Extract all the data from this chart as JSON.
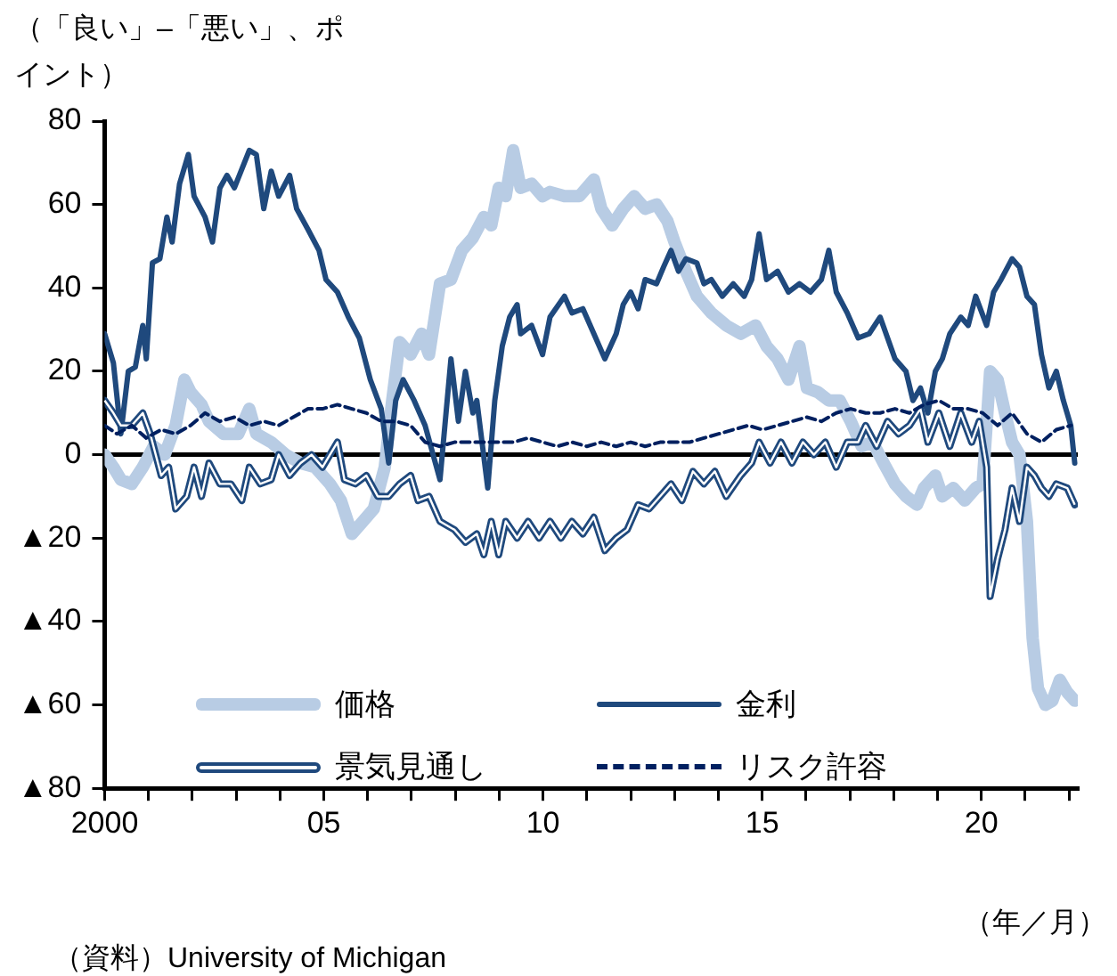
{
  "chart_data": {
    "type": "line",
    "ylabel": "（「良い」–「悪い」、ポイント）",
    "xlabel": "（年／月）",
    "annotations": [
      "（資料）University of Michigan"
    ],
    "xlim": [
      2000,
      2022.2
    ],
    "xticks": [
      {
        "value": 2000,
        "label": "2000"
      },
      {
        "value": 2001,
        "label": null
      },
      {
        "value": 2002,
        "label": null
      },
      {
        "value": 2003,
        "label": null
      },
      {
        "value": 2004,
        "label": null
      },
      {
        "value": 2005,
        "label": "05"
      },
      {
        "value": 2006,
        "label": null
      },
      {
        "value": 2007,
        "label": null
      },
      {
        "value": 2008,
        "label": null
      },
      {
        "value": 2009,
        "label": null
      },
      {
        "value": 2010,
        "label": "10"
      },
      {
        "value": 2011,
        "label": null
      },
      {
        "value": 2012,
        "label": null
      },
      {
        "value": 2013,
        "label": null
      },
      {
        "value": 2014,
        "label": null
      },
      {
        "value": 2015,
        "label": "15"
      },
      {
        "value": 2016,
        "label": null
      },
      {
        "value": 2017,
        "label": null
      },
      {
        "value": 2018,
        "label": null
      },
      {
        "value": 2019,
        "label": null
      },
      {
        "value": 2020,
        "label": "20"
      },
      {
        "value": 2021,
        "label": null
      },
      {
        "value": 2022,
        "label": null
      }
    ],
    "ylim": [
      -80,
      80
    ],
    "yticks": [
      {
        "value": -80,
        "label": "▲80"
      },
      {
        "value": -60,
        "label": "▲60"
      },
      {
        "value": -40,
        "label": "▲40"
      },
      {
        "value": -20,
        "label": "▲20"
      },
      0,
      20,
      40,
      60,
      80
    ],
    "grid": false,
    "legend": "bottom",
    "marker": "none",
    "ref_lines": [
      {
        "axis": "y",
        "value": 0,
        "color": "#000000"
      }
    ],
    "series": [
      {
        "name": "価格",
        "color": "#b8cce4",
        "line_style": "solid",
        "x": [
          2000,
          2000.2,
          2000.37,
          2000.62,
          2000.87,
          2001.12,
          2001.37,
          2001.62,
          2001.82,
          2001.96,
          2002.21,
          2002.38,
          2002.71,
          2003.05,
          2003.3,
          2003.46,
          2003.8,
          2004.13,
          2004.47,
          2004.8,
          2005.14,
          2005.39,
          2005.64,
          2005.89,
          2006.14,
          2006.39,
          2006.56,
          2006.73,
          2006.98,
          2007.23,
          2007.4,
          2007.65,
          2007.9,
          2008.15,
          2008.4,
          2008.65,
          2008.82,
          2008.99,
          2009.15,
          2009.32,
          2009.49,
          2009.74,
          2009.99,
          2010.16,
          2010.49,
          2010.83,
          2011.16,
          2011.33,
          2011.58,
          2011.83,
          2012.08,
          2012.33,
          2012.59,
          2012.84,
          2013,
          2013.26,
          2013.51,
          2013.84,
          2014.18,
          2014.51,
          2014.85,
          2015.1,
          2015.35,
          2015.6,
          2015.85,
          2016.02,
          2016.27,
          2016.52,
          2016.77,
          2017.02,
          2017.27,
          2017.52,
          2017.77,
          2018.03,
          2018.28,
          2018.53,
          2018.69,
          2018.95,
          2019.11,
          2019.36,
          2019.62,
          2019.87,
          2020.03,
          2020.2,
          2020.37,
          2020.54,
          2020.7,
          2020.87,
          2021.04,
          2021.17,
          2021.29,
          2021.46,
          2021.62,
          2021.79,
          2021.96,
          2022.13
        ],
        "values": [
          0,
          -3,
          -6,
          -7,
          -3,
          2,
          0,
          7,
          18,
          15,
          12,
          8,
          5,
          5,
          11,
          5,
          3,
          0,
          -2,
          -3,
          -7,
          -11,
          -19,
          -16,
          -13,
          -3,
          13,
          27,
          24,
          29,
          24,
          41,
          42,
          49,
          52,
          57,
          55,
          64,
          62,
          73,
          64,
          65,
          62,
          63,
          62,
          62,
          66,
          59,
          55,
          59,
          62,
          59,
          60,
          56,
          51,
          44,
          38,
          34,
          31,
          29,
          31,
          26,
          23,
          18,
          26,
          16,
          15,
          13,
          13,
          8,
          2,
          3,
          -2,
          -7,
          -10,
          -12,
          -8,
          -5,
          -10,
          -8,
          -11,
          -8,
          -7,
          20,
          18,
          10,
          3,
          0,
          -16,
          -44,
          -56,
          -60,
          -59,
          -54,
          -57,
          -59
        ]
      },
      {
        "name": "金利",
        "color": "#1f497d",
        "line_style": "solid",
        "x": [
          2000,
          2000.2,
          2000.37,
          2000.54,
          2000.7,
          2000.87,
          2000.95,
          2001.09,
          2001.26,
          2001.42,
          2001.54,
          2001.71,
          2001.91,
          2002.04,
          2002.29,
          2002.46,
          2002.63,
          2002.79,
          2002.96,
          2003.3,
          2003.46,
          2003.63,
          2003.8,
          2003.97,
          2004.22,
          2004.38,
          2004.64,
          2004.89,
          2005.05,
          2005.31,
          2005.56,
          2005.81,
          2006.06,
          2006.31,
          2006.48,
          2006.64,
          2006.81,
          2007.06,
          2007.31,
          2007.65,
          2007.9,
          2008.07,
          2008.23,
          2008.4,
          2008.49,
          2008.74,
          2008.9,
          2009.07,
          2009.24,
          2009.41,
          2009.49,
          2009.74,
          2009.99,
          2010.16,
          2010.49,
          2010.66,
          2010.91,
          2011.16,
          2011.41,
          2011.67,
          2011.83,
          2012,
          2012.17,
          2012.33,
          2012.59,
          2012.75,
          2012.92,
          2013.09,
          2013.26,
          2013.51,
          2013.67,
          2013.84,
          2014.09,
          2014.34,
          2014.59,
          2014.76,
          2014.93,
          2015.1,
          2015.35,
          2015.6,
          2015.85,
          2016.1,
          2016.35,
          2016.52,
          2016.69,
          2016.94,
          2017.19,
          2017.44,
          2017.69,
          2017.86,
          2018.03,
          2018.28,
          2018.44,
          2018.61,
          2018.78,
          2018.95,
          2019.11,
          2019.28,
          2019.53,
          2019.7,
          2019.87,
          2020.12,
          2020.28,
          2020.45,
          2020.7,
          2020.87,
          2021.04,
          2021.21,
          2021.37,
          2021.54,
          2021.71,
          2021.87,
          2022.04,
          2022.13
        ],
        "values": [
          29,
          22,
          5,
          20,
          21,
          31,
          23,
          46,
          47,
          57,
          51,
          65,
          72,
          62,
          57,
          51,
          64,
          67,
          64,
          73,
          72,
          59,
          68,
          62,
          67,
          59,
          54,
          49,
          42,
          39,
          33,
          28,
          18,
          11,
          -2,
          13,
          18,
          13,
          7,
          -6,
          23,
          8,
          20,
          10,
          13,
          -8,
          13,
          26,
          33,
          36,
          29,
          31,
          24,
          33,
          38,
          34,
          35,
          29,
          23,
          29,
          36,
          39,
          35,
          42,
          41,
          45,
          49,
          44,
          47,
          46,
          41,
          42,
          38,
          41,
          38,
          42,
          53,
          42,
          44,
          39,
          41,
          39,
          42,
          49,
          39,
          34,
          28,
          29,
          33,
          28,
          23,
          20,
          13,
          16,
          10,
          20,
          23,
          29,
          33,
          31,
          38,
          31,
          39,
          42,
          47,
          45,
          38,
          36,
          24,
          16,
          20,
          13,
          7,
          -2
        ]
      },
      {
        "name": "景気見通し",
        "color": "#1f497d",
        "line_style": "solid",
        "x": [
          2000,
          2000.2,
          2000.37,
          2000.62,
          2000.87,
          2001.04,
          2001.29,
          2001.46,
          2001.62,
          2001.87,
          2002.04,
          2002.21,
          2002.38,
          2002.63,
          2002.88,
          2003.13,
          2003.3,
          2003.55,
          2003.8,
          2003.97,
          2004.22,
          2004.47,
          2004.72,
          2004.97,
          2005.31,
          2005.47,
          2005.72,
          2005.97,
          2006.23,
          2006.48,
          2006.73,
          2006.98,
          2007.15,
          2007.4,
          2007.65,
          2007.98,
          2008.23,
          2008.49,
          2008.65,
          2008.82,
          2008.99,
          2009.15,
          2009.41,
          2009.66,
          2009.91,
          2010.16,
          2010.41,
          2010.66,
          2010.91,
          2011.16,
          2011.41,
          2011.67,
          2011.92,
          2012.17,
          2012.42,
          2012.67,
          2012.92,
          2013.17,
          2013.42,
          2013.67,
          2013.92,
          2014.18,
          2014.51,
          2014.76,
          2014.93,
          2015.18,
          2015.43,
          2015.68,
          2015.93,
          2016.18,
          2016.44,
          2016.69,
          2016.94,
          2017.19,
          2017.36,
          2017.61,
          2017.86,
          2018.11,
          2018.36,
          2018.61,
          2018.78,
          2019.03,
          2019.28,
          2019.53,
          2019.78,
          2019.95,
          2020.12,
          2020.2,
          2020.37,
          2020.54,
          2020.7,
          2020.87,
          2021.04,
          2021.21,
          2021.37,
          2021.54,
          2021.71,
          2021.96,
          2022.13
        ],
        "values": [
          13,
          10,
          7,
          7,
          10,
          5,
          -5,
          -3,
          -13,
          -10,
          -3,
          -10,
          -2,
          -7,
          -7,
          -11,
          -3,
          -7,
          -6,
          0,
          -5,
          -2,
          0,
          -3,
          3,
          -6,
          -7,
          -5,
          -10,
          -10,
          -7,
          -5,
          -11,
          -10,
          -16,
          -18,
          -21,
          -19,
          -24,
          -16,
          -24,
          -16,
          -20,
          -16,
          -20,
          -16,
          -20,
          -16,
          -19,
          -15,
          -23,
          -20,
          -18,
          -12,
          -13,
          -10,
          -7,
          -11,
          -4,
          -7,
          -4,
          -10,
          -5,
          -2,
          3,
          -2,
          3,
          -2,
          3,
          0,
          3,
          -3,
          3,
          3,
          7,
          2,
          8,
          5,
          7,
          11,
          3,
          10,
          2,
          10,
          3,
          8,
          -3,
          -34,
          -25,
          -18,
          -8,
          -16,
          -3,
          -5,
          -8,
          -10,
          -7,
          -8,
          -12
        ]
      },
      {
        "name": "リスク許容",
        "color": "#002060",
        "line_style": "dashed",
        "x": [
          2000,
          2000.28,
          2000.62,
          2000.95,
          2001.29,
          2001.62,
          2001.96,
          2002.29,
          2002.63,
          2002.96,
          2003.3,
          2003.63,
          2003.97,
          2004.3,
          2004.64,
          2004.97,
          2005.31,
          2005.64,
          2005.97,
          2006.31,
          2006.64,
          2006.98,
          2007.31,
          2007.65,
          2007.98,
          2008.32,
          2008.65,
          2008.99,
          2009.32,
          2009.66,
          2009.99,
          2010.33,
          2010.66,
          2011,
          2011.33,
          2011.67,
          2012,
          2012.33,
          2012.67,
          2013,
          2013.34,
          2013.67,
          2014.01,
          2014.34,
          2014.68,
          2015.01,
          2015.35,
          2015.68,
          2016.02,
          2016.35,
          2016.69,
          2017.02,
          2017.36,
          2017.69,
          2018.03,
          2018.36,
          2018.69,
          2019.03,
          2019.36,
          2019.7,
          2020.03,
          2020.37,
          2020.7,
          2021.04,
          2021.37,
          2021.71,
          2022.04
        ],
        "values": [
          7,
          5,
          7,
          4,
          6,
          5,
          7,
          10,
          8,
          9,
          7,
          8,
          7,
          9,
          11,
          11,
          12,
          11,
          10,
          8,
          8,
          7,
          3,
          2,
          3,
          3,
          3,
          3,
          3,
          4,
          3,
          2,
          3,
          2,
          3,
          2,
          3,
          2,
          3,
          3,
          3,
          4,
          5,
          6,
          7,
          6,
          7,
          8,
          9,
          8,
          10,
          11,
          10,
          10,
          11,
          10,
          12,
          13,
          11,
          11,
          10,
          7,
          10,
          5,
          3,
          6,
          7
        ]
      }
    ]
  }
}
